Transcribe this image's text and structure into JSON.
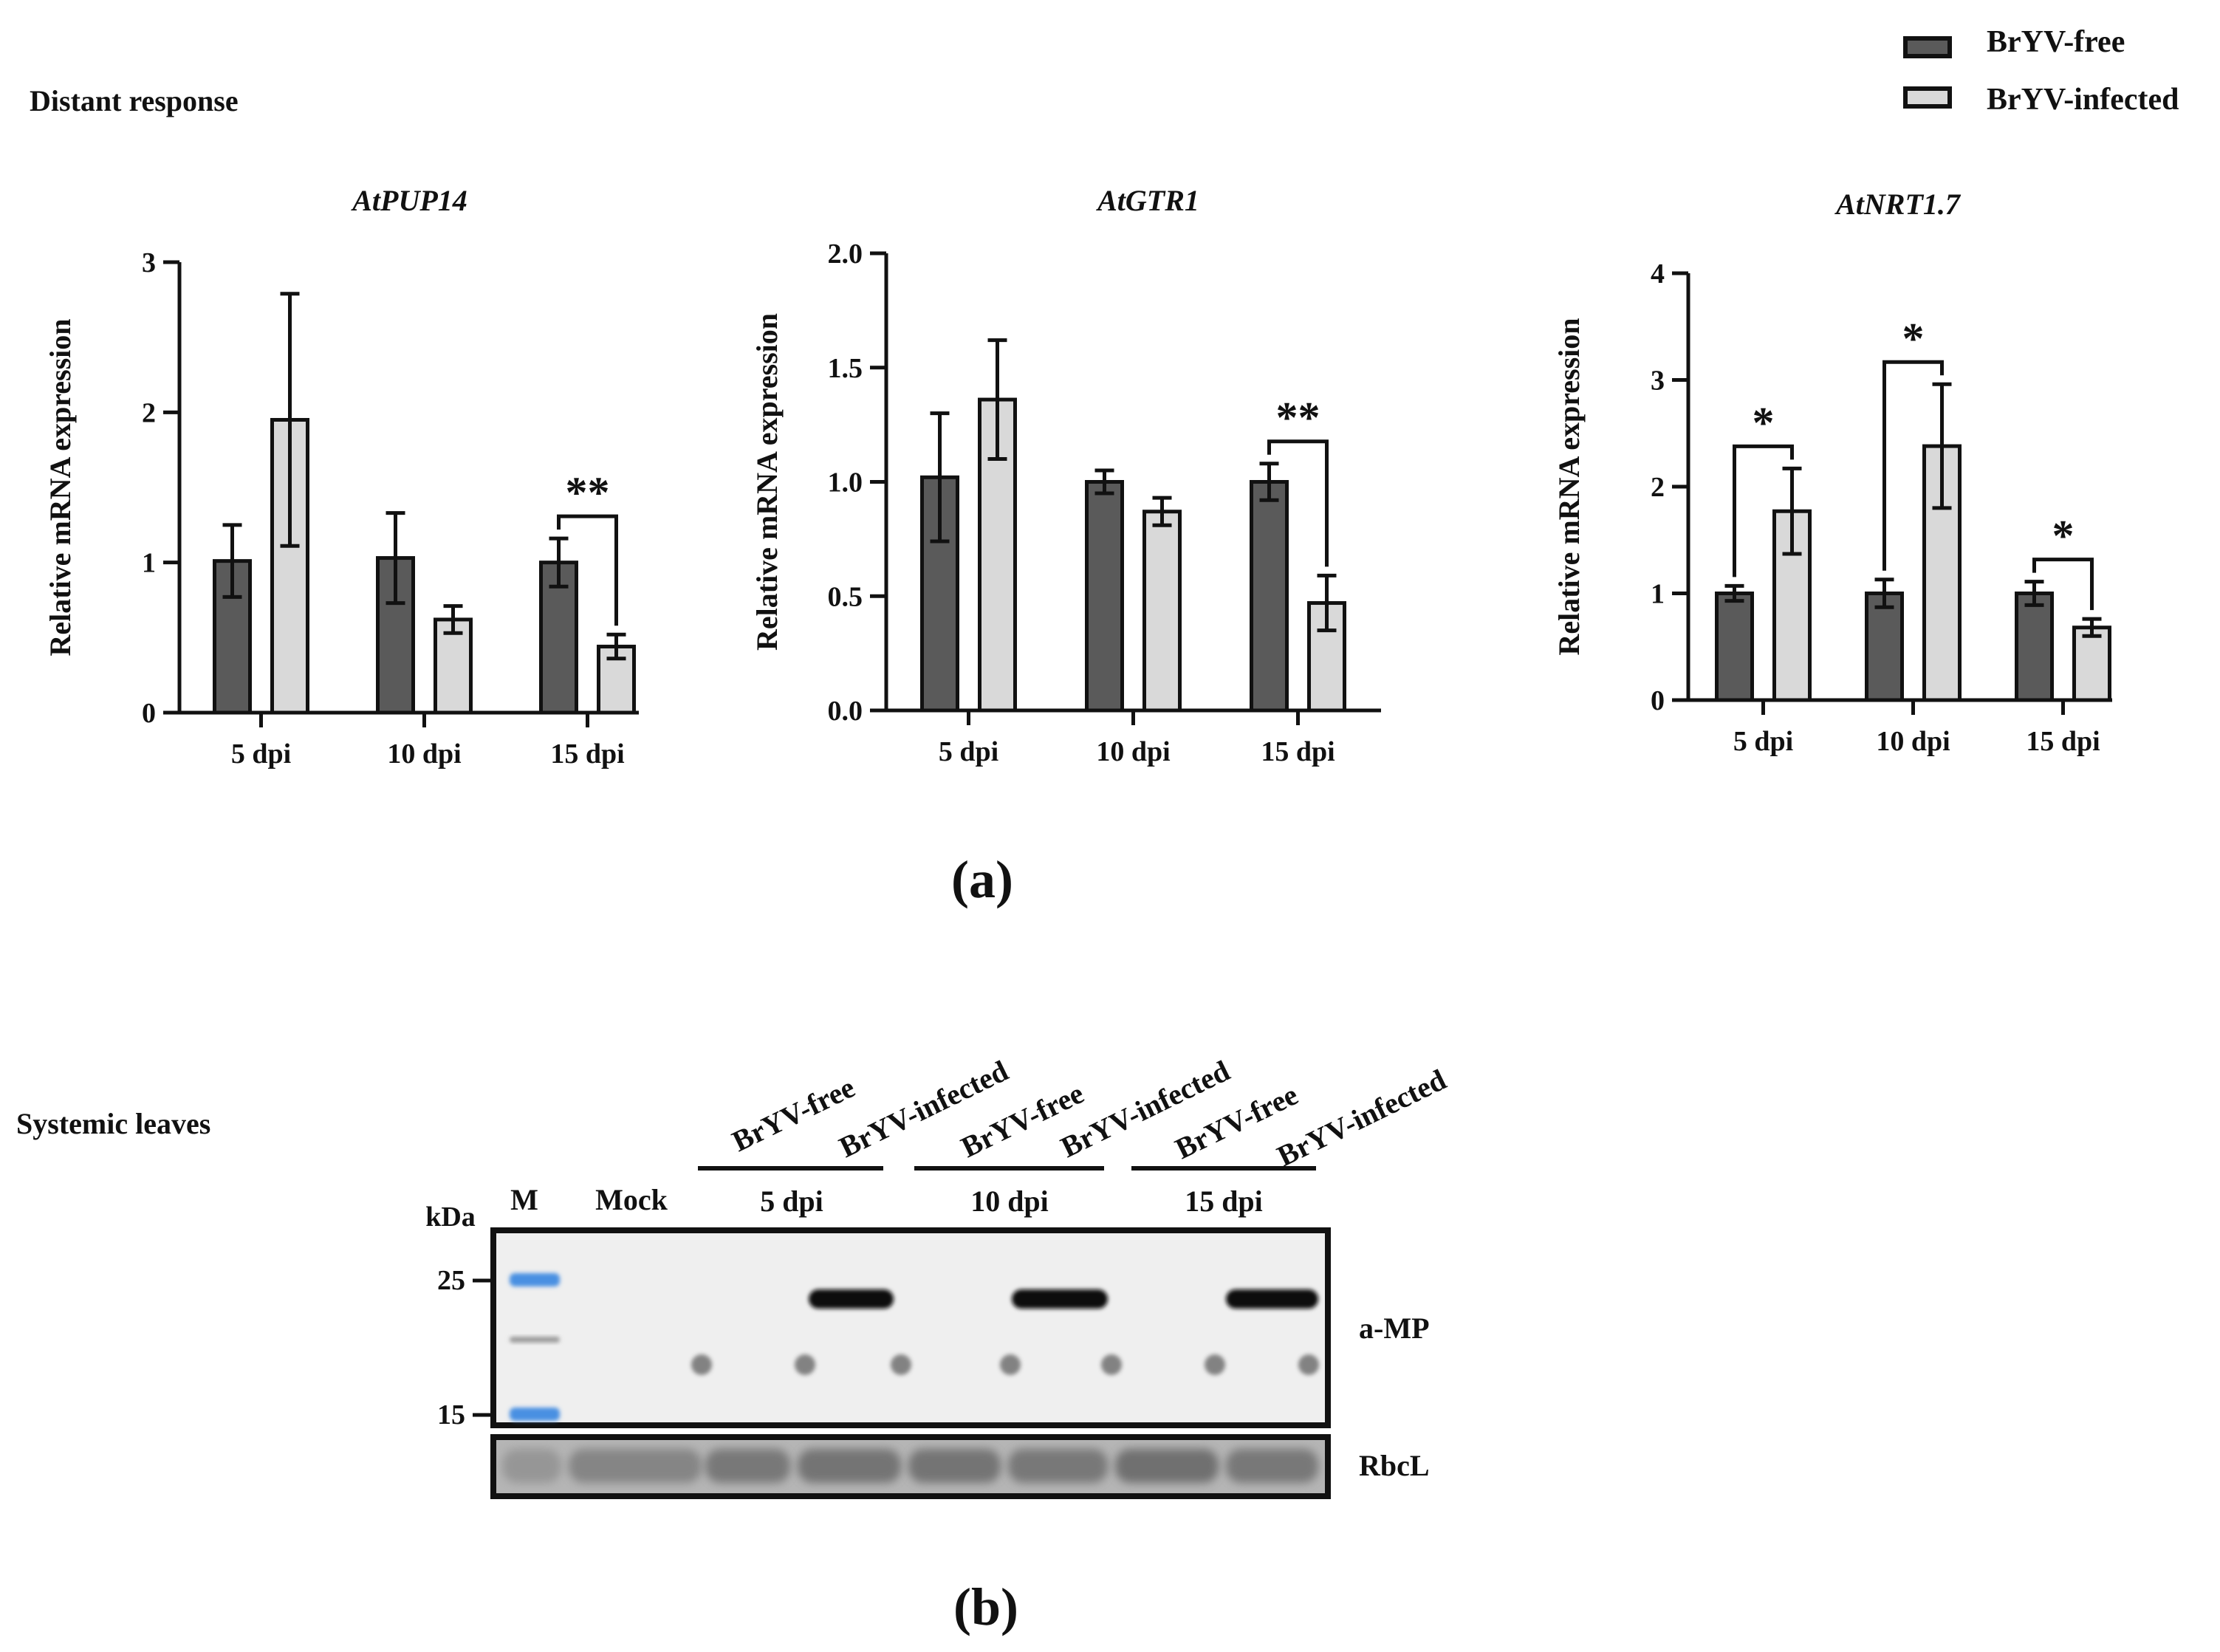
{
  "figure": {
    "panel_a": {
      "label": "(a)",
      "section_title": "Distant response"
    },
    "panel_b": {
      "label": "(b)",
      "section_title": "Systemic leaves"
    },
    "legend": [
      {
        "name": "BrYV-free",
        "color": "#5a5a5a"
      },
      {
        "name": "BrYV-infected",
        "color": "#d9d9d9"
      }
    ]
  },
  "chart_data": [
    {
      "type": "bar",
      "title": "AtPUP14",
      "ylabel": "Relative mRNA expression",
      "categories": [
        "5 dpi",
        "10 dpi",
        "15 dpi"
      ],
      "ylim": [
        0,
        3
      ],
      "yticks": [
        "0",
        "1",
        "2",
        "3"
      ],
      "series": [
        {
          "name": "BrYV-free",
          "values": [
            1.01,
            1.03,
            1.0
          ],
          "errors": [
            0.24,
            0.3,
            0.16
          ]
        },
        {
          "name": "BrYV-infected",
          "values": [
            1.95,
            0.62,
            0.44
          ],
          "errors": [
            0.84,
            0.09,
            0.08
          ]
        }
      ],
      "significance": [
        {
          "category": "15 dpi",
          "label": "**"
        }
      ]
    },
    {
      "type": "bar",
      "title": "AtGTR1",
      "ylabel": "Relative mRNA expression",
      "categories": [
        "5 dpi",
        "10 dpi",
        "15 dpi"
      ],
      "ylim": [
        0,
        2.0
      ],
      "yticks": [
        "0.0",
        "0.5",
        "1.0",
        "1.5",
        "2.0"
      ],
      "series": [
        {
          "name": "BrYV-free",
          "values": [
            1.02,
            1.0,
            1.0
          ],
          "errors": [
            0.28,
            0.05,
            0.08
          ]
        },
        {
          "name": "BrYV-infected",
          "values": [
            1.36,
            0.87,
            0.47
          ],
          "errors": [
            0.26,
            0.06,
            0.12
          ]
        }
      ],
      "significance": [
        {
          "category": "15 dpi",
          "label": "**"
        }
      ]
    },
    {
      "type": "bar",
      "title": "AtNRT1.7",
      "ylabel": "Relative mRNA expression",
      "categories": [
        "5 dpi",
        "10 dpi",
        "15 dpi"
      ],
      "ylim": [
        0,
        4
      ],
      "yticks": [
        "0",
        "1",
        "2",
        "3",
        "4"
      ],
      "series": [
        {
          "name": "BrYV-free",
          "values": [
            1.0,
            1.0,
            1.0
          ],
          "errors": [
            0.07,
            0.13,
            0.11
          ]
        },
        {
          "name": "BrYV-infected",
          "values": [
            1.77,
            2.38,
            0.68
          ],
          "errors": [
            0.4,
            0.58,
            0.08
          ]
        }
      ],
      "significance": [
        {
          "category": "5 dpi",
          "label": "*"
        },
        {
          "category": "10 dpi",
          "label": "*"
        },
        {
          "category": "15 dpi",
          "label": "*"
        }
      ]
    }
  ],
  "western_blot": {
    "lane_labels": [
      "BrYV-free",
      "BrYV-infected",
      "BrYV-free",
      "BrYV-infected",
      "BrYV-free",
      "BrYV-infected"
    ],
    "marker_label": "M",
    "mock_label": "Mock",
    "timepoints": [
      "5 dpi",
      "10 dpi",
      "15 dpi"
    ],
    "kda_label": "kDa",
    "marker_sizes": [
      "25",
      "15"
    ],
    "marker_color": "#4a90e2",
    "blot_labels": [
      "a-MP",
      "RbcL"
    ],
    "mp_band_present": [
      false,
      false,
      true,
      false,
      true,
      false,
      true
    ]
  }
}
